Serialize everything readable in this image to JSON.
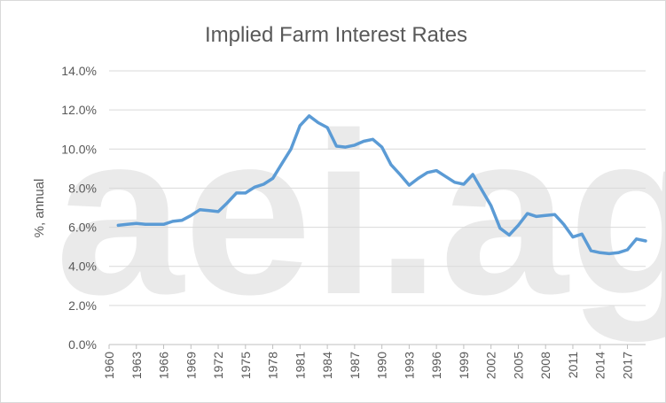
{
  "chart_data": {
    "type": "line",
    "title": "Implied Farm Interest Rates",
    "xlabel": "",
    "ylabel": "%, annual",
    "ylim": [
      0,
      14
    ],
    "yticks": [
      "0.0%",
      "2.0%",
      "4.0%",
      "6.0%",
      "8.0%",
      "10.0%",
      "12.0%",
      "14.0%"
    ],
    "xticks": [
      "1960",
      "1963",
      "1966",
      "1969",
      "1972",
      "1975",
      "1978",
      "1981",
      "1984",
      "1987",
      "1990",
      "1993",
      "1996",
      "1999",
      "2002",
      "2005",
      "2008",
      "2011",
      "2014",
      "2017"
    ],
    "xlim": [
      1960,
      2019
    ],
    "grid": "horizontal",
    "legend": "none",
    "line_color": "#5b9bd5",
    "series": [
      {
        "x": [
          1961,
          1962,
          1963,
          1964,
          1965,
          1966,
          1967,
          1968,
          1969,
          1970,
          1971,
          1972,
          1973,
          1974,
          1975,
          1976,
          1977,
          1978,
          1979,
          1980,
          1981,
          1982,
          1983,
          1984,
          1985,
          1986,
          1987,
          1988,
          1989,
          1990,
          1991,
          1992,
          1993,
          1994,
          1995,
          1996,
          1997,
          1998,
          1999,
          2000,
          2001,
          2002,
          2003,
          2004,
          2005,
          2006,
          2007,
          2008,
          2009,
          2010,
          2011,
          2012,
          2013,
          2014,
          2015,
          2016,
          2017,
          2018,
          2019
        ],
        "values": [
          6.1,
          6.15,
          6.2,
          6.15,
          6.15,
          6.15,
          6.3,
          6.35,
          6.6,
          6.9,
          6.85,
          6.8,
          7.25,
          7.75,
          7.75,
          8.05,
          8.2,
          8.5,
          9.25,
          10.0,
          11.2,
          11.7,
          11.35,
          11.1,
          10.15,
          10.1,
          10.2,
          10.4,
          10.5,
          10.1,
          9.2,
          8.7,
          8.15,
          8.5,
          8.8,
          8.9,
          8.6,
          8.3,
          8.2,
          8.7,
          7.9,
          7.1,
          5.95,
          5.6,
          6.1,
          6.7,
          6.55,
          6.6,
          6.65,
          6.15,
          5.5,
          5.65,
          4.8,
          4.7,
          4.65,
          4.7,
          4.85,
          5.4,
          5.3
        ]
      }
    ],
    "watermark": "aei.ag"
  }
}
